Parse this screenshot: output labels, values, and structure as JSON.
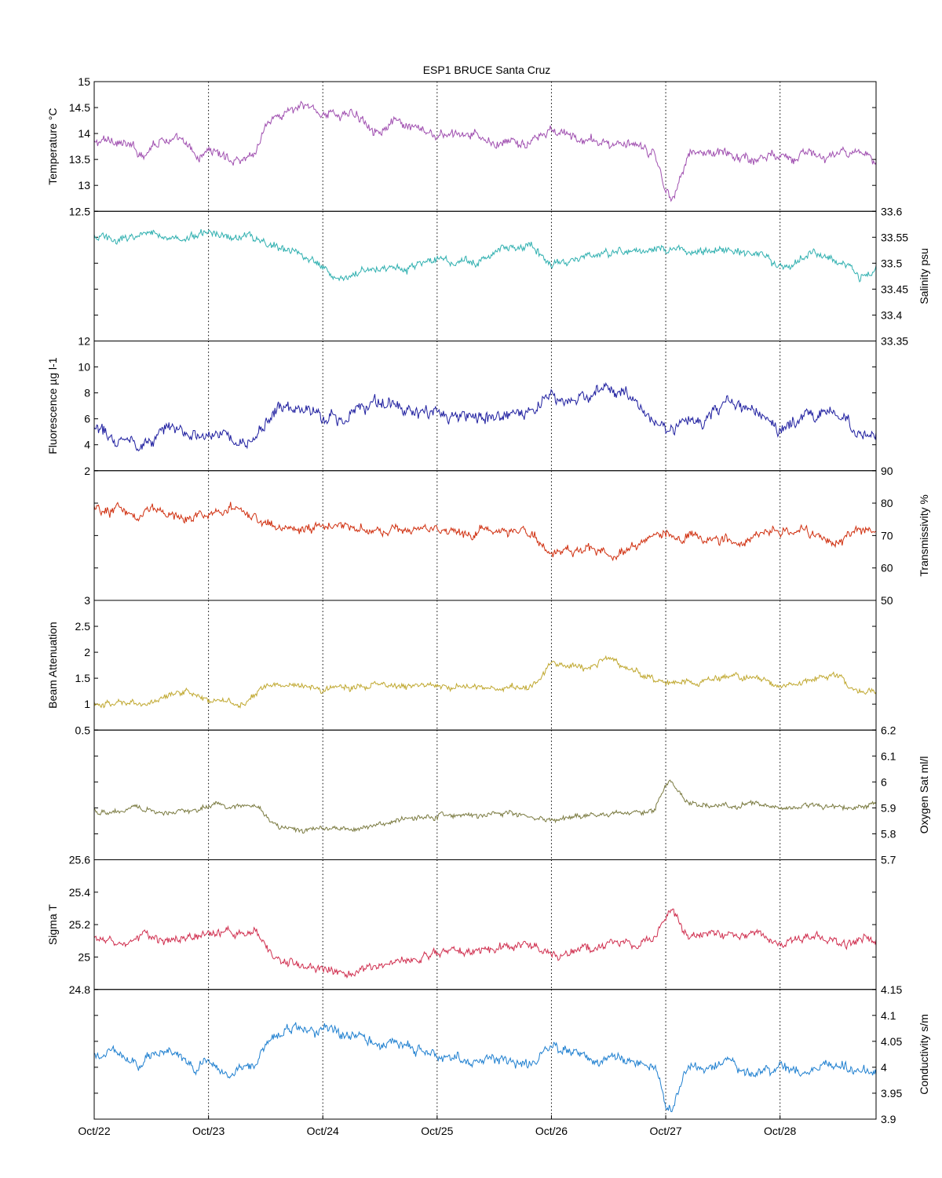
{
  "title": "ESP1 BRUCE Santa Cruz",
  "x_axis": {
    "ticks": [
      "Oct/22",
      "Oct/23",
      "Oct/24",
      "Oct/25",
      "Oct/26",
      "Oct/27",
      "Oct/28"
    ],
    "range_days": [
      22.0,
      28.84
    ]
  },
  "chart_data": [
    {
      "type": "line",
      "name": "temperature",
      "label": "Temperature °C",
      "axis_side": "left",
      "color": "#a050b0",
      "ylim": [
        12.5,
        15
      ],
      "yticks": [
        "12.5",
        "13",
        "13.5",
        "14",
        "14.5",
        "15"
      ],
      "noise": 0.11,
      "x": [
        22.0,
        22.2,
        22.4,
        22.6,
        22.8,
        22.9,
        23.0,
        23.2,
        23.4,
        23.5,
        23.7,
        23.9,
        24.0,
        24.3,
        24.5,
        24.6,
        24.8,
        25.0,
        25.3,
        25.5,
        25.8,
        26.0,
        26.3,
        26.6,
        26.9,
        27.0,
        27.05,
        27.2,
        27.6,
        27.8,
        28.0,
        28.3,
        28.5,
        28.84
      ],
      "values": [
        13.8,
        13.9,
        13.6,
        13.95,
        13.75,
        13.5,
        13.7,
        13.5,
        13.6,
        14.2,
        14.45,
        14.5,
        14.4,
        14.35,
        14.1,
        14.2,
        14.05,
        13.95,
        13.95,
        13.8,
        13.8,
        14.05,
        13.85,
        13.8,
        13.6,
        12.9,
        12.75,
        13.65,
        13.6,
        13.5,
        13.65,
        13.55,
        13.6,
        13.5
      ]
    },
    {
      "type": "line",
      "name": "salinity",
      "label": "Salinity psu",
      "axis_side": "right",
      "color": "#30b0b0",
      "ylim": [
        33.35,
        33.6
      ],
      "yticks": [
        "33.35",
        "33.4",
        "33.45",
        "33.5",
        "33.55",
        "33.6"
      ],
      "noise": 0.009,
      "x": [
        22.0,
        22.2,
        22.5,
        22.8,
        23.0,
        23.3,
        23.6,
        23.9,
        24.1,
        24.3,
        24.6,
        24.8,
        25.0,
        25.3,
        25.6,
        25.8,
        26.0,
        26.3,
        26.6,
        26.9,
        27.1,
        27.6,
        28.0,
        28.3,
        28.55,
        28.7,
        28.84
      ],
      "values": [
        33.55,
        33.545,
        33.56,
        33.545,
        33.56,
        33.555,
        33.53,
        33.51,
        33.47,
        33.48,
        33.5,
        33.495,
        33.51,
        33.5,
        33.53,
        33.535,
        33.49,
        33.515,
        33.52,
        33.525,
        33.525,
        33.525,
        33.495,
        33.515,
        33.505,
        33.465,
        33.495
      ]
    },
    {
      "type": "line",
      "name": "fluorescence",
      "label": "Fluorescence µg l-1",
      "axis_side": "left",
      "color": "#2020a0",
      "ylim": [
        2,
        12
      ],
      "yticks": [
        "2",
        "4",
        "6",
        "8",
        "10",
        "12"
      ],
      "noise": 0.55,
      "x": [
        22.0,
        22.2,
        22.4,
        22.6,
        22.8,
        23.0,
        23.2,
        23.4,
        23.6,
        23.9,
        24.2,
        24.4,
        24.6,
        24.8,
        25.0,
        25.3,
        25.6,
        25.8,
        26.0,
        26.2,
        26.5,
        26.7,
        26.9,
        27.0,
        27.3,
        27.6,
        27.9,
        28.0,
        28.3,
        28.55,
        28.65,
        28.84
      ],
      "values": [
        5.0,
        4.7,
        4.0,
        5.5,
        5.2,
        5.0,
        4.6,
        4.2,
        6.8,
        6.5,
        6.0,
        7.0,
        7.0,
        6.5,
        6.0,
        6.5,
        5.8,
        6.2,
        7.5,
        7.3,
        8.6,
        7.8,
        6.0,
        5.2,
        5.8,
        7.0,
        6.2,
        5.0,
        6.5,
        6.5,
        4.5,
        5.0
      ]
    },
    {
      "type": "line",
      "name": "transmissivity",
      "label": "Transmissivity %",
      "axis_side": "right",
      "color": "#d03010",
      "ylim": [
        50,
        90
      ],
      "yticks": [
        "50",
        "60",
        "70",
        "80",
        "90"
      ],
      "noise": 1.7,
      "x": [
        22.0,
        22.3,
        22.5,
        22.8,
        23.0,
        23.2,
        23.4,
        23.5,
        23.8,
        24.2,
        24.5,
        24.8,
        25.0,
        25.3,
        25.6,
        25.8,
        26.0,
        26.3,
        26.5,
        26.8,
        27.0,
        27.3,
        27.6,
        27.9,
        28.0,
        28.3,
        28.55,
        28.6,
        28.84
      ],
      "values": [
        78,
        77,
        78,
        75,
        77,
        78,
        76,
        73,
        72,
        73,
        71,
        72,
        72,
        71,
        73,
        71,
        65,
        66,
        64,
        68,
        70,
        69,
        68,
        71,
        71,
        69,
        68,
        72,
        72
      ]
    },
    {
      "type": "line",
      "name": "beam_attenuation",
      "label": "Beam Attenuation",
      "axis_side": "left",
      "color": "#c0a830",
      "ylim": [
        0.5,
        3
      ],
      "yticks": [
        "0.5",
        "1",
        "1.5",
        "2",
        "2.5",
        "3"
      ],
      "noise": 0.07,
      "x": [
        22.0,
        22.3,
        22.5,
        22.8,
        23.0,
        23.3,
        23.5,
        23.8,
        24.0,
        24.3,
        24.5,
        24.8,
        25.0,
        25.3,
        25.6,
        25.8,
        26.0,
        26.3,
        26.5,
        26.8,
        27.0,
        27.3,
        27.6,
        27.9,
        28.0,
        28.3,
        28.55,
        28.6,
        28.84
      ],
      "values": [
        1.0,
        1.0,
        1.05,
        1.25,
        1.05,
        1.0,
        1.35,
        1.35,
        1.3,
        1.35,
        1.4,
        1.35,
        1.35,
        1.35,
        1.3,
        1.3,
        1.75,
        1.7,
        1.9,
        1.55,
        1.4,
        1.45,
        1.55,
        1.45,
        1.35,
        1.5,
        1.55,
        1.3,
        1.3
      ]
    },
    {
      "type": "line",
      "name": "oxygen_sat",
      "label": "Oxygen Sat ml/l",
      "axis_side": "right",
      "color": "#7a7a40",
      "ylim": [
        5.7,
        6.2
      ],
      "yticks": [
        "5.7",
        "5.8",
        "5.9",
        "6",
        "6.1",
        "6.2"
      ],
      "noise": 0.012,
      "x": [
        22.0,
        22.2,
        22.4,
        22.6,
        22.8,
        23.0,
        23.2,
        23.4,
        23.6,
        23.8,
        24.0,
        24.3,
        24.5,
        24.7,
        25.0,
        25.3,
        25.6,
        25.8,
        26.0,
        26.3,
        26.6,
        26.9,
        27.0,
        27.05,
        27.2,
        27.5,
        27.8,
        28.0,
        28.3,
        28.6,
        28.84
      ],
      "values": [
        5.89,
        5.88,
        5.91,
        5.88,
        5.89,
        5.91,
        5.9,
        5.92,
        5.83,
        5.81,
        5.81,
        5.82,
        5.84,
        5.86,
        5.87,
        5.87,
        5.88,
        5.87,
        5.85,
        5.87,
        5.88,
        5.89,
        5.98,
        6.0,
        5.91,
        5.91,
        5.92,
        5.9,
        5.91,
        5.9,
        5.91
      ]
    },
    {
      "type": "line",
      "name": "sigma_t",
      "label": "Sigma T",
      "axis_side": "left",
      "color": "#d03050",
      "ylim": [
        24.8,
        25.6
      ],
      "yticks": [
        "24.8",
        "25",
        "25.2",
        "25.4",
        "25.6"
      ],
      "noise": 0.03,
      "x": [
        22.0,
        22.2,
        22.4,
        22.6,
        22.8,
        23.0,
        23.2,
        23.4,
        23.6,
        23.8,
        24.0,
        24.3,
        24.5,
        24.7,
        25.0,
        25.3,
        25.6,
        25.8,
        26.0,
        26.3,
        26.6,
        26.9,
        27.0,
        27.05,
        27.2,
        27.5,
        27.8,
        28.0,
        28.3,
        28.6,
        28.84
      ],
      "values": [
        25.1,
        25.08,
        25.15,
        25.08,
        25.12,
        25.15,
        25.14,
        25.17,
        24.97,
        24.93,
        24.93,
        24.91,
        24.95,
        24.99,
        25.02,
        25.02,
        25.07,
        25.08,
        25.0,
        25.05,
        25.08,
        25.1,
        25.26,
        25.3,
        25.12,
        25.12,
        25.14,
        25.1,
        25.12,
        25.09,
        25.12
      ]
    },
    {
      "type": "line",
      "name": "conductivity",
      "label": "Conductivity s/m",
      "axis_side": "right",
      "color": "#2080d0",
      "ylim": [
        3.9,
        4.15
      ],
      "yticks": [
        "3.9",
        "3.95",
        "4",
        "4.05",
        "4.1",
        "4.15"
      ],
      "noise": 0.011,
      "x": [
        22.0,
        22.2,
        22.4,
        22.6,
        22.8,
        22.9,
        23.0,
        23.2,
        23.4,
        23.5,
        23.7,
        23.9,
        24.0,
        24.3,
        24.5,
        24.6,
        24.8,
        25.0,
        25.3,
        25.5,
        25.8,
        26.0,
        26.3,
        26.6,
        26.9,
        27.0,
        27.05,
        27.2,
        27.6,
        27.8,
        28.0,
        28.3,
        28.5,
        28.84
      ],
      "values": [
        4.02,
        4.03,
        4.0,
        4.035,
        4.02,
        3.99,
        4.01,
        3.99,
        4.0,
        4.05,
        4.075,
        4.08,
        4.07,
        4.065,
        4.04,
        4.05,
        4.03,
        4.025,
        4.02,
        4.01,
        4.01,
        4.04,
        4.02,
        4.015,
        4.0,
        3.93,
        3.915,
        4.0,
        4.0,
        3.99,
        4.0,
        3.995,
        4.0,
        3.99
      ]
    }
  ]
}
